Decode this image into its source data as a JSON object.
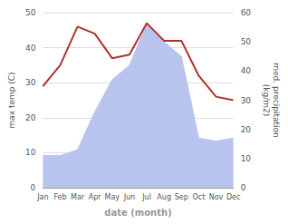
{
  "chart_data": {
    "type": "line",
    "xlabel": "date (month)",
    "ylabel": "max temp (C)",
    "y2label": "med. precipitation\n(kg/m2)",
    "categories": [
      "Jan",
      "Feb",
      "Mar",
      "Apr",
      "May",
      "Jun",
      "Jul",
      "Aug",
      "Sep",
      "Oct",
      "Nov",
      "Dec"
    ],
    "series": [
      {
        "type": "area",
        "color": "#b8c4ee",
        "axis": "y2",
        "values": [
          11,
          11,
          13,
          26,
          37,
          42,
          56,
          50,
          45,
          17,
          16,
          17
        ]
      },
      {
        "type": "line",
        "color": "#b03030",
        "values": [
          29,
          35,
          46,
          44,
          37,
          38,
          47,
          42,
          42,
          32,
          26,
          25
        ]
      }
    ],
    "ylim": [
      0,
      50
    ],
    "yticks": [
      0,
      10,
      20,
      30,
      40,
      50
    ],
    "y2lim": [
      0,
      60
    ],
    "y2ticks": [
      0,
      10,
      20,
      30,
      40,
      50,
      60
    ],
    "grid": true
  }
}
